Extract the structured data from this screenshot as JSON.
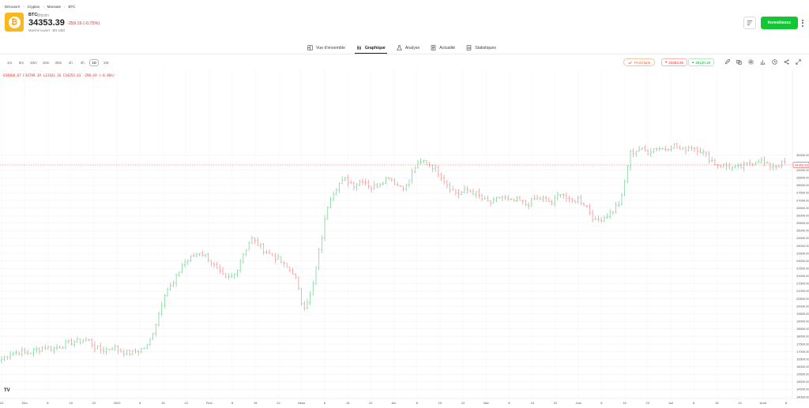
{
  "breadcrumb": [
    "Découvrir",
    "Cryptos",
    "Monnaie",
    "BTC"
  ],
  "asset": {
    "symbol": "BTC",
    "name": "Bitcoin",
    "price": "34353.39",
    "change": "-259.16 (-0.75%)",
    "market": "Marché ouvert · EN USD"
  },
  "header": {
    "invest_label": "Investissez"
  },
  "tabs": [
    {
      "label": "Vue d'ensemble",
      "icon": "overview-icon"
    },
    {
      "label": "Graphique",
      "icon": "chart-icon"
    },
    {
      "label": "Analyse",
      "icon": "analysis-icon"
    },
    {
      "label": "Actualité",
      "icon": "news-icon"
    },
    {
      "label": "Statistiques",
      "icon": "stats-icon"
    }
  ],
  "timeframes": [
    "1m",
    "5m",
    "10m",
    "15m",
    "30m",
    "1h",
    "4h",
    "1D",
    "1W"
  ],
  "active_timeframe": "1D",
  "toolbar": {
    "prochart_label": "ProCharts",
    "sell_price": "34353.39",
    "buy_price": "35120.19"
  },
  "ohlc": {
    "o": "O34660.67",
    "h": "H34709.39",
    "l": "L34163.16",
    "c": "C34353.63",
    "chg": "-298.69 (-0.86%)"
  },
  "colors": {
    "up": "#7ed59a",
    "down": "#f09a9a",
    "accent": "#13c636",
    "sell": "#e22d2d",
    "brand": "#f7b91e"
  },
  "chart_data": {
    "type": "bar",
    "subtype": "ohlc",
    "y_ticks": [
      "30000.00",
      "29500.00",
      "29000.00",
      "28500.00",
      "28000.00",
      "27500.00",
      "27000.00",
      "26500.00",
      "26000.00",
      "25500.00",
      "25000.00",
      "24500.00",
      "24000.00",
      "23500.00",
      "23000.00",
      "22500.00",
      "22000.00",
      "21500.00",
      "21000.00",
      "20500.00",
      "20000.00",
      "19500.00",
      "19000.00",
      "18500.00",
      "18000.00",
      "17500.00",
      "17000.00",
      "16500.00",
      "16000.00",
      "15500.00",
      "15000.00",
      "14500.00",
      "14000.00"
    ],
    "x_ticks": [
      "22",
      "Déc",
      "8",
      "15",
      "22",
      "2023",
      "8",
      "15",
      "22",
      "Févr",
      "8",
      "15",
      "22",
      "Mars",
      "8",
      "15",
      "22",
      "Avr",
      "8",
      "15",
      "22",
      "Mai",
      "8",
      "15",
      "22",
      "Juin",
      "8",
      "15",
      "22",
      "Juil",
      "8",
      "15",
      "22",
      "Août",
      "8"
    ],
    "ylim": [
      14000,
      35250
    ],
    "last_price": "34353.39",
    "approx_close_trajectory": [
      16500,
      16900,
      17000,
      16900,
      17100,
      17300,
      17200,
      17400,
      17600,
      17700,
      17800,
      17200,
      17100,
      17300,
      17000,
      16900,
      17100,
      17400,
      19000,
      21000,
      21500,
      22800,
      23200,
      23600,
      23200,
      22400,
      21800,
      22000,
      23400,
      24500,
      24000,
      23500,
      23200,
      22600,
      22200,
      19900,
      20800,
      24000,
      27000,
      28000,
      28400,
      28000,
      28400,
      27800,
      28200,
      28600,
      28000,
      27900,
      29200,
      29600,
      29300,
      28700,
      27900,
      27400,
      27700,
      27500,
      27000,
      26800,
      27300,
      26900,
      27000,
      26700,
      27100,
      27100,
      26800,
      27600,
      26900,
      27100,
      26600,
      25600,
      25900,
      26300,
      27000,
      30100,
      30400,
      30200,
      30500,
      30400,
      30700,
      30300,
      30600,
      30400,
      29900,
      29400,
      29300,
      29100,
      29200,
      29500,
      29700,
      29300,
      29300,
      29500
    ]
  }
}
